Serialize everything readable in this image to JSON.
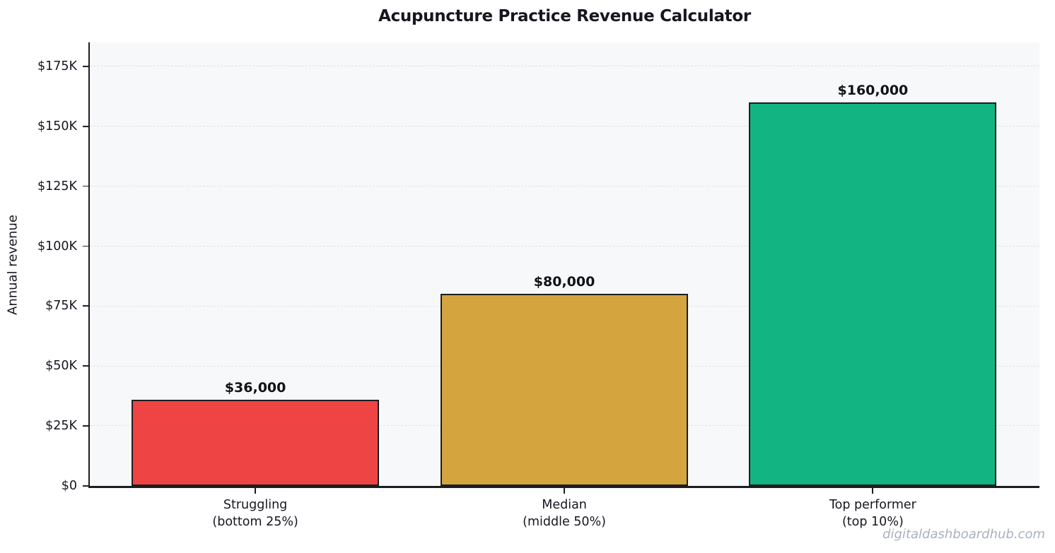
{
  "chart_data": {
    "type": "bar",
    "title": "Acupuncture Practice Revenue Calculator",
    "xlabel": "",
    "ylabel": "Annual revenue",
    "categories": [
      "Struggling\n(bottom 25%)",
      "Median\n(middle 50%)",
      "Top performer\n(top 10%)"
    ],
    "values": [
      36000,
      80000,
      160000
    ],
    "value_labels": [
      "$36,000",
      "$80,000",
      "$160,000"
    ],
    "bar_colors": [
      "#ee4444",
      "#d4a53f",
      "#12b581"
    ],
    "bar_edge_color": "#1d1d20",
    "y_ticks": [
      {
        "value": 0,
        "label": "$0"
      },
      {
        "value": 25000,
        "label": "$25K"
      },
      {
        "value": 50000,
        "label": "$50K"
      },
      {
        "value": 75000,
        "label": "$75K"
      },
      {
        "value": 100000,
        "label": "$100K"
      },
      {
        "value": 125000,
        "label": "$125K"
      },
      {
        "value": 150000,
        "label": "$150K"
      },
      {
        "value": 175000,
        "label": "$175K"
      }
    ],
    "ylim": [
      0,
      185000
    ],
    "grid": "horizontal-dashed",
    "legend": "none",
    "plot_background": "#f7f8fa"
  },
  "watermark": "digitaldashboardhub.com"
}
